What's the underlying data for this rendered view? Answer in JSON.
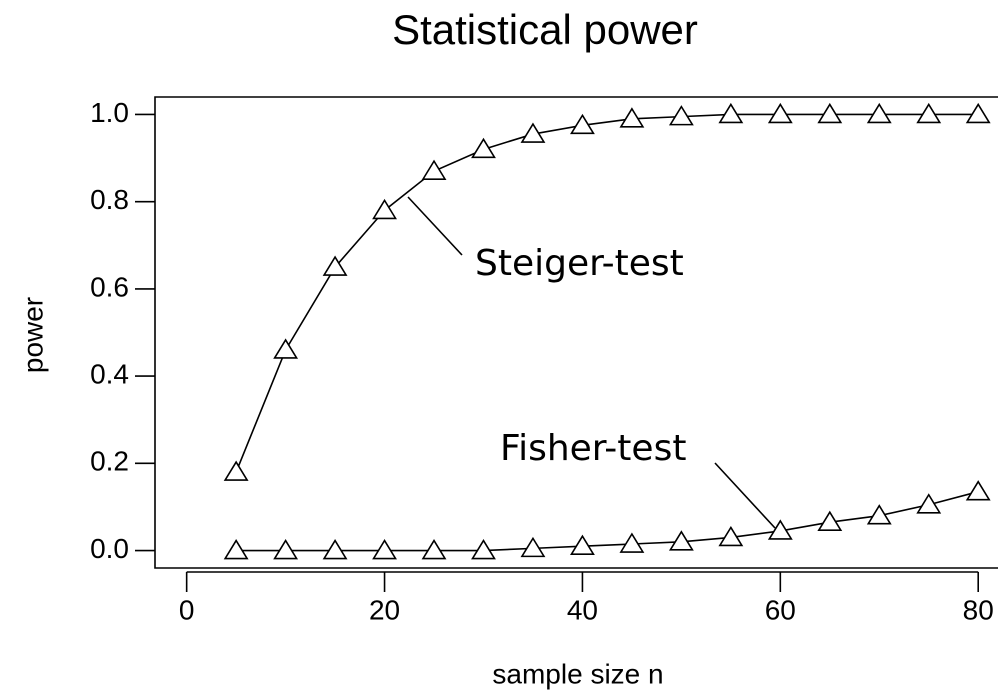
{
  "chart_data": {
    "type": "line",
    "title": "Statistical power",
    "xlabel": "sample size n",
    "ylabel": "power",
    "x": [
      5,
      10,
      15,
      20,
      25,
      30,
      35,
      40,
      45,
      50,
      55,
      60,
      65,
      70,
      75,
      80
    ],
    "series": [
      {
        "name": "Steiger-test",
        "color": "#000000",
        "values": [
          0.18,
          0.46,
          0.65,
          0.78,
          0.87,
          0.92,
          0.955,
          0.975,
          0.99,
          0.995,
          1.0,
          1.0,
          1.0,
          1.0,
          1.0,
          1.0
        ]
      },
      {
        "name": "Fisher-test",
        "color": "#000000",
        "values": [
          0.0,
          0.0,
          0.0,
          0.0,
          0.0,
          0.0,
          0.005,
          0.01,
          0.015,
          0.02,
          0.03,
          0.045,
          0.065,
          0.08,
          0.105,
          0.135
        ]
      }
    ],
    "xlim": [
      -3.2,
      82
    ],
    "ylim": [
      -0.04,
      1.04
    ],
    "xticks": [
      0,
      20,
      40,
      60,
      80
    ],
    "yticks": [
      {
        "value": 0,
        "label": "0.0"
      },
      0.2,
      0.4,
      0.6,
      0.8,
      {
        "value": 1,
        "label": "1.0"
      }
    ],
    "grid": false
  }
}
